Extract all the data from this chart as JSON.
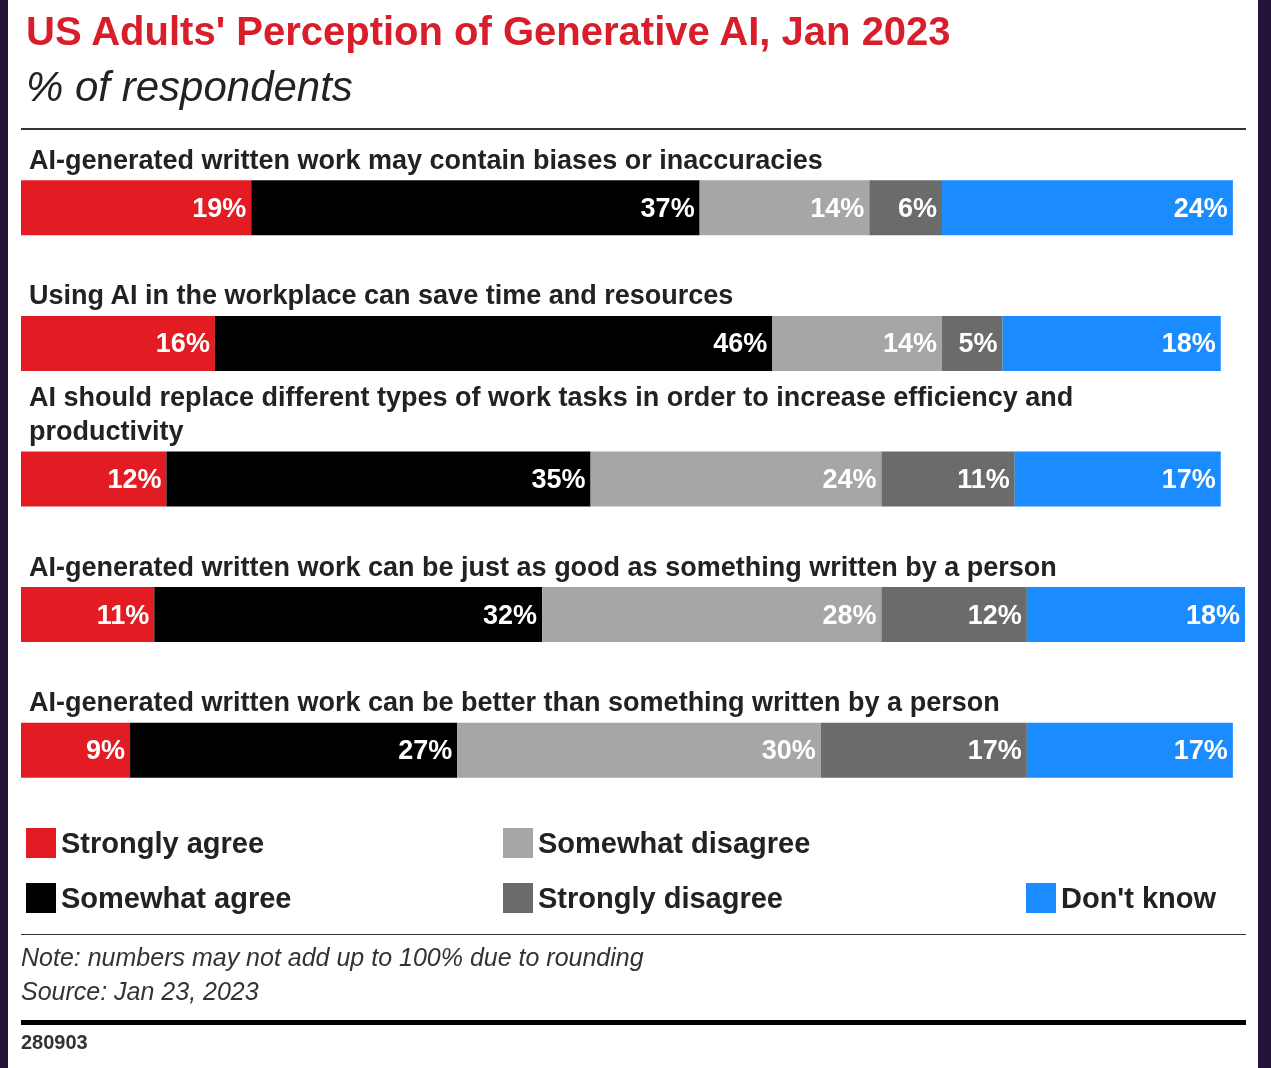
{
  "chart_data": {
    "type": "bar",
    "orientation": "horizontal",
    "stacked": true,
    "legend": "bottom",
    "title": "US Adults' Perception of Generative AI, Jan 2023",
    "subtitle": "% of respondents",
    "categories": [
      "AI-generated written work may contain biases or inaccuracies",
      "Using AI in the workplace can save time and resources",
      "AI should replace different types of work tasks in order to increase efficiency and productivity",
      "AI-generated written work can be just as good as something written by a person",
      "AI-generated written work can be better than something written by a person"
    ],
    "series": [
      {
        "name": "Strongly agree",
        "color": "#e31b23",
        "values": [
          19,
          16,
          12,
          11,
          9
        ],
        "value_labels": [
          "19%",
          "16%",
          "12%",
          "11%",
          "9%"
        ]
      },
      {
        "name": "Somewhat agree",
        "color": "#000000",
        "values": [
          37,
          46,
          35,
          32,
          27
        ],
        "value_labels": [
          "37%",
          "46%",
          "35%",
          "32%",
          "27%"
        ]
      },
      {
        "name": "Somewhat disagree",
        "color": "#a6a6a6",
        "values": [
          14,
          14,
          24,
          28,
          30
        ],
        "value_labels": [
          "14%",
          "14%",
          "24%",
          "28%",
          "30%"
        ]
      },
      {
        "name": "Strongly disagree",
        "color": "#6b6b6b",
        "values": [
          6,
          5,
          11,
          12,
          17
        ],
        "value_labels": [
          "6%",
          "5%",
          "11%",
          "12%",
          "17%"
        ]
      },
      {
        "name": "Don't know",
        "color": "#1a8cff",
        "values": [
          24,
          18,
          17,
          18,
          17
        ],
        "value_labels": [
          "24%",
          "18%",
          "17%",
          "18%",
          "17%"
        ]
      }
    ],
    "annotations": [
      "Note: numbers may not add up to 100% due to rounding",
      "Source: Jan 23, 2023",
      "280903"
    ]
  }
}
